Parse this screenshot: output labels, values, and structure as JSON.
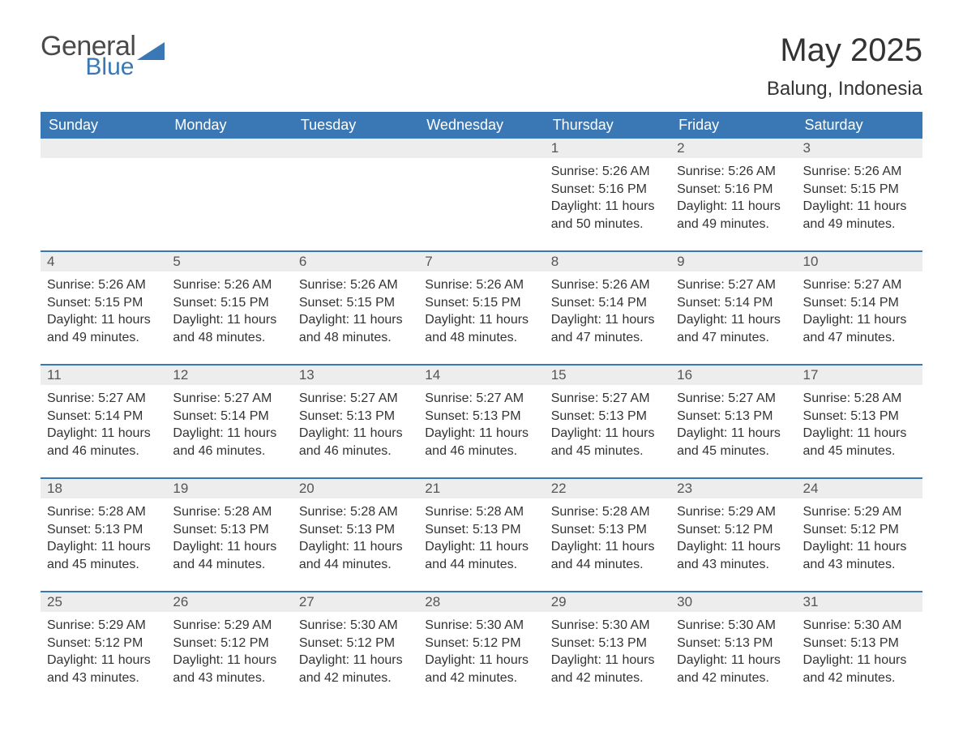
{
  "logo": {
    "text1": "General",
    "text2": "Blue",
    "shape_color": "#3a78b5"
  },
  "title": "May 2025",
  "location": "Balung, Indonesia",
  "colors": {
    "header_bg": "#3a78b5",
    "header_text": "#ffffff",
    "daynum_bg": "#ededed",
    "daynum_text": "#555555",
    "body_text": "#333333",
    "page_bg": "#ffffff"
  },
  "day_headers": [
    "Sunday",
    "Monday",
    "Tuesday",
    "Wednesday",
    "Thursday",
    "Friday",
    "Saturday"
  ],
  "label_sunrise": "Sunrise: ",
  "label_sunset": "Sunset: ",
  "label_daylight_prefix": "Daylight: ",
  "label_daylight_suffix": ".",
  "weeks": [
    [
      null,
      null,
      null,
      null,
      {
        "n": "1",
        "sunrise": "5:26 AM",
        "sunset": "5:16 PM",
        "daylight": "11 hours and 50 minutes"
      },
      {
        "n": "2",
        "sunrise": "5:26 AM",
        "sunset": "5:16 PM",
        "daylight": "11 hours and 49 minutes"
      },
      {
        "n": "3",
        "sunrise": "5:26 AM",
        "sunset": "5:15 PM",
        "daylight": "11 hours and 49 minutes"
      }
    ],
    [
      {
        "n": "4",
        "sunrise": "5:26 AM",
        "sunset": "5:15 PM",
        "daylight": "11 hours and 49 minutes"
      },
      {
        "n": "5",
        "sunrise": "5:26 AM",
        "sunset": "5:15 PM",
        "daylight": "11 hours and 48 minutes"
      },
      {
        "n": "6",
        "sunrise": "5:26 AM",
        "sunset": "5:15 PM",
        "daylight": "11 hours and 48 minutes"
      },
      {
        "n": "7",
        "sunrise": "5:26 AM",
        "sunset": "5:15 PM",
        "daylight": "11 hours and 48 minutes"
      },
      {
        "n": "8",
        "sunrise": "5:26 AM",
        "sunset": "5:14 PM",
        "daylight": "11 hours and 47 minutes"
      },
      {
        "n": "9",
        "sunrise": "5:27 AM",
        "sunset": "5:14 PM",
        "daylight": "11 hours and 47 minutes"
      },
      {
        "n": "10",
        "sunrise": "5:27 AM",
        "sunset": "5:14 PM",
        "daylight": "11 hours and 47 minutes"
      }
    ],
    [
      {
        "n": "11",
        "sunrise": "5:27 AM",
        "sunset": "5:14 PM",
        "daylight": "11 hours and 46 minutes"
      },
      {
        "n": "12",
        "sunrise": "5:27 AM",
        "sunset": "5:14 PM",
        "daylight": "11 hours and 46 minutes"
      },
      {
        "n": "13",
        "sunrise": "5:27 AM",
        "sunset": "5:13 PM",
        "daylight": "11 hours and 46 minutes"
      },
      {
        "n": "14",
        "sunrise": "5:27 AM",
        "sunset": "5:13 PM",
        "daylight": "11 hours and 46 minutes"
      },
      {
        "n": "15",
        "sunrise": "5:27 AM",
        "sunset": "5:13 PM",
        "daylight": "11 hours and 45 minutes"
      },
      {
        "n": "16",
        "sunrise": "5:27 AM",
        "sunset": "5:13 PM",
        "daylight": "11 hours and 45 minutes"
      },
      {
        "n": "17",
        "sunrise": "5:28 AM",
        "sunset": "5:13 PM",
        "daylight": "11 hours and 45 minutes"
      }
    ],
    [
      {
        "n": "18",
        "sunrise": "5:28 AM",
        "sunset": "5:13 PM",
        "daylight": "11 hours and 45 minutes"
      },
      {
        "n": "19",
        "sunrise": "5:28 AM",
        "sunset": "5:13 PM",
        "daylight": "11 hours and 44 minutes"
      },
      {
        "n": "20",
        "sunrise": "5:28 AM",
        "sunset": "5:13 PM",
        "daylight": "11 hours and 44 minutes"
      },
      {
        "n": "21",
        "sunrise": "5:28 AM",
        "sunset": "5:13 PM",
        "daylight": "11 hours and 44 minutes"
      },
      {
        "n": "22",
        "sunrise": "5:28 AM",
        "sunset": "5:13 PM",
        "daylight": "11 hours and 44 minutes"
      },
      {
        "n": "23",
        "sunrise": "5:29 AM",
        "sunset": "5:12 PM",
        "daylight": "11 hours and 43 minutes"
      },
      {
        "n": "24",
        "sunrise": "5:29 AM",
        "sunset": "5:12 PM",
        "daylight": "11 hours and 43 minutes"
      }
    ],
    [
      {
        "n": "25",
        "sunrise": "5:29 AM",
        "sunset": "5:12 PM",
        "daylight": "11 hours and 43 minutes"
      },
      {
        "n": "26",
        "sunrise": "5:29 AM",
        "sunset": "5:12 PM",
        "daylight": "11 hours and 43 minutes"
      },
      {
        "n": "27",
        "sunrise": "5:30 AM",
        "sunset": "5:12 PM",
        "daylight": "11 hours and 42 minutes"
      },
      {
        "n": "28",
        "sunrise": "5:30 AM",
        "sunset": "5:12 PM",
        "daylight": "11 hours and 42 minutes"
      },
      {
        "n": "29",
        "sunrise": "5:30 AM",
        "sunset": "5:13 PM",
        "daylight": "11 hours and 42 minutes"
      },
      {
        "n": "30",
        "sunrise": "5:30 AM",
        "sunset": "5:13 PM",
        "daylight": "11 hours and 42 minutes"
      },
      {
        "n": "31",
        "sunrise": "5:30 AM",
        "sunset": "5:13 PM",
        "daylight": "11 hours and 42 minutes"
      }
    ]
  ]
}
